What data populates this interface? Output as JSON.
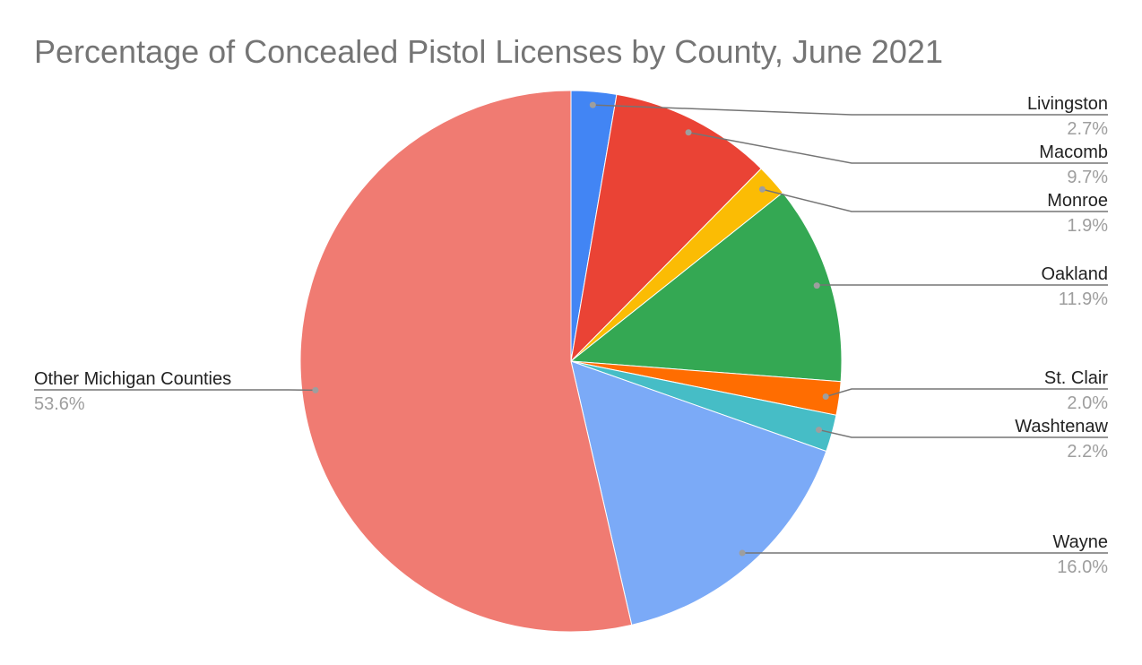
{
  "chart_data": {
    "type": "pie",
    "title": "Percentage of Concealed Pistol Licenses by County, June 2021",
    "start_angle": "top, clockwise",
    "slices": [
      {
        "label": "Livingston",
        "value": 2.7,
        "display": "2.7%",
        "color": "#4285f4"
      },
      {
        "label": "Macomb",
        "value": 9.7,
        "display": "9.7%",
        "color": "#ea4335"
      },
      {
        "label": "Monroe",
        "value": 1.9,
        "display": "1.9%",
        "color": "#fbbc04"
      },
      {
        "label": "Oakland",
        "value": 11.9,
        "display": "11.9%",
        "color": "#34a853"
      },
      {
        "label": "St. Clair",
        "value": 2.0,
        "display": "2.0%",
        "color": "#ff6d01"
      },
      {
        "label": "Washtenaw",
        "value": 2.2,
        "display": "2.2%",
        "color": "#46bdc6"
      },
      {
        "label": "Wayne",
        "value": 16.0,
        "display": "16.0%",
        "color": "#7baaf7"
      },
      {
        "label": "Other Michigan Counties",
        "value": 53.6,
        "display": "53.6%",
        "color": "#f07b72"
      }
    ],
    "legend": "labels with leader lines"
  }
}
